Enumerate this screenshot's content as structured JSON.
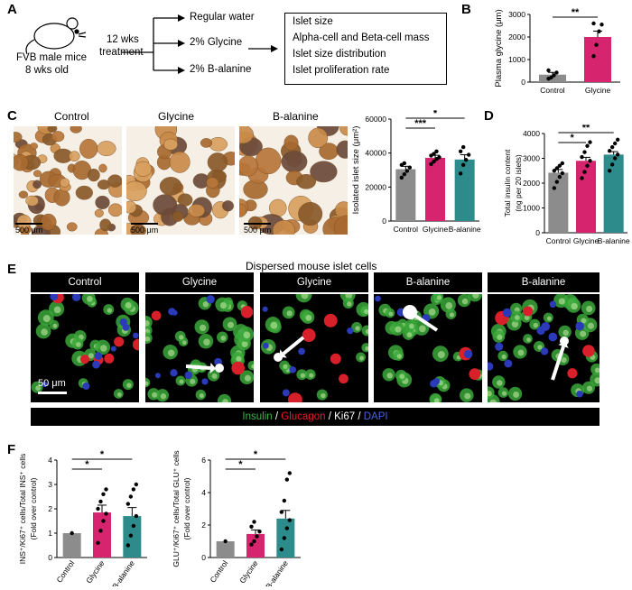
{
  "panel_letters": {
    "a": "A",
    "b": "B",
    "c": "C",
    "d": "D",
    "e": "E",
    "f": "F"
  },
  "panelA": {
    "mouse_line1": "FVB male mice",
    "mouse_line2": "8 wks old",
    "duration_line1": "12 wks",
    "duration_line2": "treatment",
    "treatments": [
      "Regular water",
      "2% Glycine",
      "2% B-alanine"
    ],
    "outcomes": [
      "Islet size",
      "Alpha-cell and Beta-cell mass",
      "Islet size distribution",
      "Islet proliferation rate"
    ]
  },
  "panelC": {
    "image_titles": [
      "Control",
      "Glycine",
      "B-alanine"
    ],
    "scale_bar_label": "500 μm"
  },
  "panelE": {
    "title": "Dispersed mouse islet cells",
    "image_titles": [
      "Control",
      "Glycine",
      "Glycine",
      "B-alanine",
      "B-alanine"
    ],
    "scale_bar_label": "50 μm",
    "legend": [
      {
        "text": "Insulin",
        "color": "#39b54a"
      },
      {
        "text": " / ",
        "color": "#ffffff"
      },
      {
        "text": "Glucagon",
        "color": "#ed1c24"
      },
      {
        "text": " / ",
        "color": "#ffffff"
      },
      {
        "text": "Ki67",
        "color": "#ffffff"
      },
      {
        "text": " / ",
        "color": "#ffffff"
      },
      {
        "text": "DAPI",
        "color": "#4a64d8"
      }
    ]
  },
  "colors": {
    "control": "#8c8c8c",
    "glycine": "#d6246e",
    "balanine": "#2e8b8b"
  },
  "chart_data": [
    {
      "id": "B",
      "type": "bar",
      "categories": [
        "Control",
        "Glycine"
      ],
      "values": [
        330,
        2000
      ],
      "errors": [
        100,
        260
      ],
      "points": [
        [
          150,
          200,
          300,
          420,
          520
        ],
        [
          1150,
          1650,
          2250,
          2550,
          2600
        ]
      ],
      "ylabel": "Plasma glycine (μm)",
      "ylim": [
        0,
        3000
      ],
      "yticks": [
        0,
        1000,
        2000,
        3000
      ],
      "significance": [
        {
          "from": 0,
          "to": 1,
          "label": "**"
        }
      ]
    },
    {
      "id": "C",
      "type": "bar",
      "categories": [
        "Control",
        "Glycine",
        "B-alanine"
      ],
      "values": [
        30500,
        37200,
        36200
      ],
      "errors": [
        1700,
        1500,
        2800
      ],
      "points": [
        [
          25500,
          27500,
          29500,
          31500,
          33000,
          34000
        ],
        [
          33500,
          35000,
          36500,
          37500,
          38500,
          39500,
          41000
        ],
        [
          28000,
          33000,
          36000,
          39000,
          41000,
          43500
        ]
      ],
      "ylabel": "Isolated islet size (μm²)",
      "ylim": [
        0,
        60000
      ],
      "yticks": [
        0,
        20000,
        40000,
        60000
      ],
      "significance": [
        {
          "from": 0,
          "to": 1,
          "label": "***"
        },
        {
          "from": 0,
          "to": 2,
          "label": "*"
        }
      ]
    },
    {
      "id": "D",
      "type": "bar",
      "categories": [
        "Control",
        "Glycine",
        "B-alanine"
      ],
      "values": [
        2420,
        2900,
        3150
      ],
      "errors": [
        130,
        140,
        120
      ],
      "points": [
        [
          1800,
          2050,
          2250,
          2400,
          2500,
          2600,
          2700,
          2800
        ],
        [
          2200,
          2450,
          2700,
          2900,
          3050,
          3250,
          3500,
          3650
        ],
        [
          2500,
          2750,
          3000,
          3150,
          3300,
          3450,
          3600,
          3750
        ]
      ],
      "ylabel_line1": "Total insulin content",
      "ylabel_line2": "(ng per 20 islets)",
      "ylim": [
        0,
        4000
      ],
      "yticks": [
        0,
        1000,
        2000,
        3000,
        4000
      ],
      "significance": [
        {
          "from": 0,
          "to": 1,
          "label": "*"
        },
        {
          "from": 0,
          "to": 2,
          "label": "**"
        }
      ]
    },
    {
      "id": "F1",
      "type": "bar",
      "categories": [
        "Control",
        "Glycine",
        "B-alanine"
      ],
      "values": [
        1.0,
        1.85,
        1.7
      ],
      "errors": [
        0.0,
        0.3,
        0.35
      ],
      "points": [
        [
          1.0
        ],
        [
          0.6,
          1.1,
          1.5,
          1.8,
          2.0,
          2.3,
          2.6,
          2.8
        ],
        [
          0.5,
          0.9,
          1.3,
          1.7,
          2.2,
          2.5,
          2.8,
          3.0
        ]
      ],
      "ylabel_line1": "INS⁺/Ki67⁺ cells/Total INS⁺ cells",
      "ylabel_line2": "(Fold over control)",
      "ylim": [
        0,
        4
      ],
      "yticks": [
        0,
        1,
        2,
        3,
        4
      ],
      "significance": [
        {
          "from": 0,
          "to": 1,
          "label": "*"
        },
        {
          "from": 0,
          "to": 2,
          "label": "*"
        }
      ]
    },
    {
      "id": "F2",
      "type": "bar",
      "categories": [
        "Control",
        "Glycine",
        "B-alanine"
      ],
      "values": [
        1.0,
        1.45,
        2.4
      ],
      "errors": [
        0.0,
        0.25,
        0.5
      ],
      "points": [
        [
          1.0
        ],
        [
          0.8,
          1.0,
          1.3,
          1.6,
          1.9,
          2.2
        ],
        [
          0.5,
          1.2,
          1.8,
          2.3,
          2.8,
          3.5,
          4.8,
          5.2
        ]
      ],
      "ylabel_line1": "GLU⁺/Ki67⁺ cells/Total GLU⁺ cells",
      "ylabel_line2": "(Fold over control)",
      "ylim": [
        0,
        6
      ],
      "yticks": [
        0,
        2,
        4,
        6
      ],
      "significance": [
        {
          "from": 0,
          "to": 1,
          "label": "*"
        },
        {
          "from": 0,
          "to": 2,
          "label": "*"
        }
      ]
    }
  ]
}
